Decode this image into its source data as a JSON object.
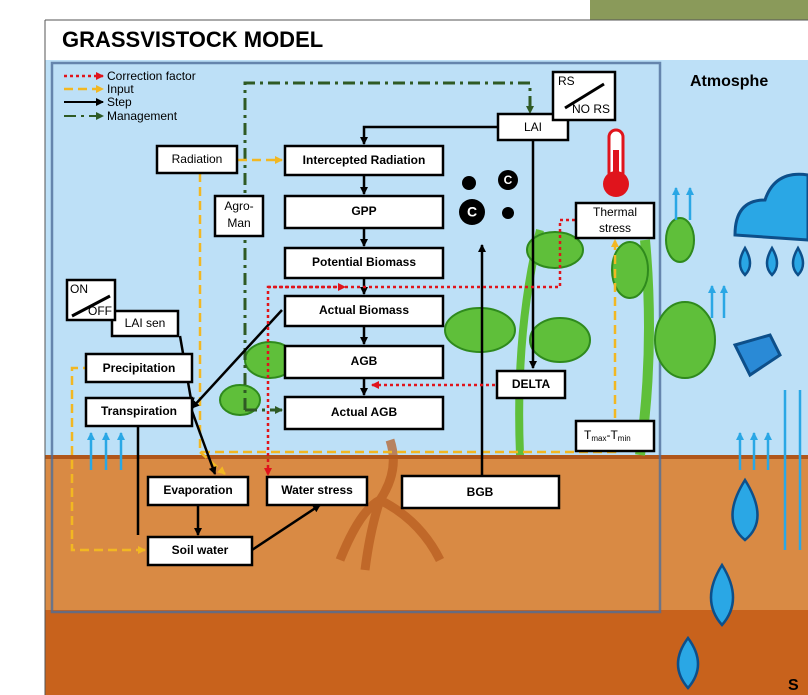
{
  "header": {
    "title": "GRASSVISTOCK MODEL"
  },
  "legend": [
    "Correction factor",
    "Input",
    "Step",
    "Management"
  ],
  "nodes": {
    "radiation": "Radiation",
    "intercepted_radiation": "Intercepted Radiation",
    "gpp": "GPP",
    "potential_biomass": "Potential Biomass",
    "actual_biomass": "Actual Biomass",
    "agb": "AGB",
    "actual_agb": "Actual AGB",
    "agro_man": [
      "Agro-",
      "Man"
    ],
    "lai": "LAI",
    "lai_sen": "LAI sen",
    "precipitation": "Precipitation",
    "transpiration": "Transpiration",
    "evaporation": "Evaporation",
    "water_stress": "Water stress",
    "soil_water": "Soil water",
    "bgb": "BGB",
    "delta": "DELTA",
    "thermal_stress": [
      "Thermal",
      "stress"
    ],
    "tmax_tmin": [
      "T",
      "max",
      "-T",
      "min"
    ]
  },
  "switches": [
    {
      "top": "RS",
      "bottom": "NO RS"
    },
    {
      "top": "ON",
      "bottom": "OFF"
    }
  ],
  "carbon_icons": [
    "C",
    "C"
  ],
  "side_labels": {
    "atmosphere": "Atmosphe",
    "soil": "S"
  }
}
